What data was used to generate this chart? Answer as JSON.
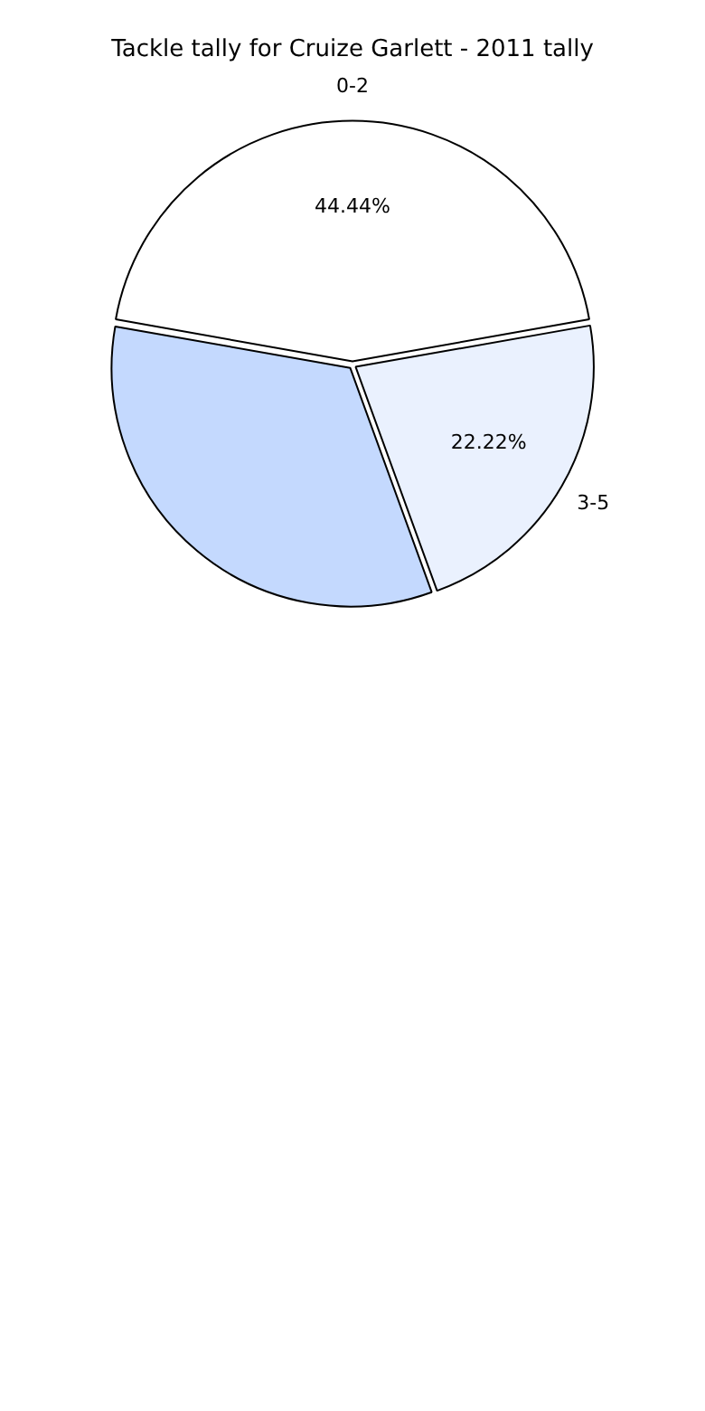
{
  "chart_data": {
    "type": "pie",
    "title": "Tackle tally for Cruize Garlett - 2011 tally",
    "categories": [
      "0-2",
      "3-5",
      null
    ],
    "values": [
      44.44,
      22.22,
      33.33
    ],
    "colors": [
      "#ffffff",
      "#eaf1fe",
      "#c4d9fe"
    ],
    "value_labels": [
      "44.44%",
      "22.22%",
      null
    ],
    "legend": false
  }
}
